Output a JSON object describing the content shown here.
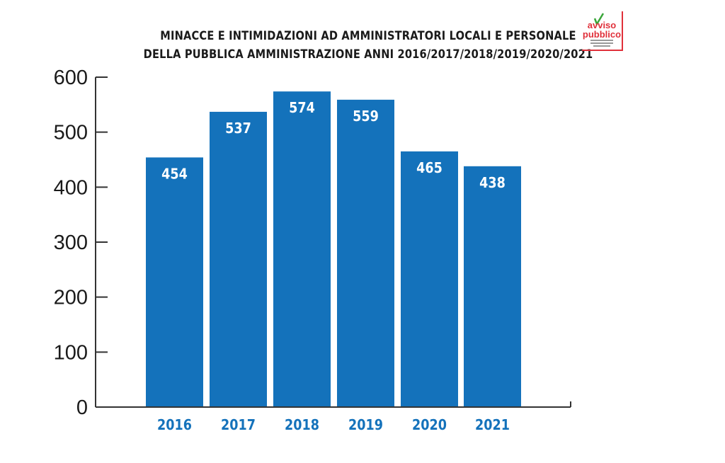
{
  "chart_data": {
    "type": "bar",
    "title": [
      "MINACCE E INTIMIDAZIONI AD AMMINISTRATORI LOCALI E PERSONALE",
      "DELLA PUBBLICA AMMINISTRAZIONE ANNI 2016/2017/2018/2019/2020/2021"
    ],
    "categories": [
      "2016",
      "2017",
      "2018",
      "2019",
      "2020",
      "2021"
    ],
    "values": [
      454,
      537,
      574,
      559,
      465,
      438
    ],
    "ylim": [
      0,
      600
    ],
    "yticks": [
      0,
      100,
      200,
      300,
      400,
      500,
      600
    ],
    "xlabel": "",
    "ylabel": "",
    "grid": false,
    "data_labels": "inside-top",
    "colors": {
      "bar": "#1472bb",
      "category_label": "#1472bb",
      "axis": "#333333",
      "data_label": "#ffffff"
    }
  },
  "logo": {
    "text": "avviso pubblico",
    "tagline": "Enti locali e Regioni per la formazione civile contro le mafie",
    "colors": {
      "text": "#e0303a",
      "check": "#3aa63a"
    }
  }
}
